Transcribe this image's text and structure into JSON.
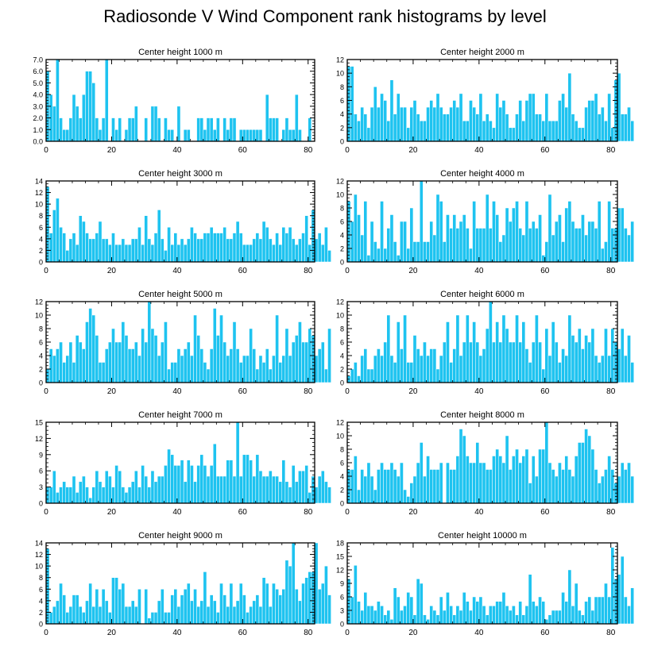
{
  "figure_title": "Radiosonde V Wind Component rank histograms by level",
  "colors": {
    "bar": "#1EC3F0",
    "bar_edge": "#ffffff",
    "axis": "#000000"
  },
  "chart_data": [
    {
      "type": "bar",
      "title": "Center height 1000 m",
      "xlim": [
        0,
        82
      ],
      "ylim": [
        0,
        7
      ],
      "xticks": [
        0,
        20,
        40,
        60,
        80
      ],
      "yticks": [
        0,
        1,
        2,
        3,
        4,
        5,
        6,
        7
      ],
      "ytick_labels": [
        "0.0",
        "1.0",
        "2.0",
        "3.0",
        "4.0",
        "5.0",
        "6.0",
        "7.0"
      ],
      "values": [
        6,
        4,
        3,
        7,
        2,
        1,
        1,
        2,
        4,
        3,
        2,
        4,
        6,
        6,
        5,
        2,
        1,
        2,
        7,
        0,
        2,
        1,
        2,
        0,
        1,
        2,
        2,
        3,
        0,
        0,
        2,
        0,
        3,
        3,
        2,
        0,
        2,
        1,
        1,
        0,
        3,
        0,
        1,
        1,
        0,
        0,
        2,
        2,
        1,
        2,
        2,
        1,
        2,
        0,
        2,
        1,
        2,
        2,
        0,
        1,
        1,
        1,
        1,
        1,
        1,
        1,
        0,
        4,
        2,
        2,
        2,
        0,
        1,
        2,
        1,
        1,
        4,
        1,
        0,
        0,
        2
      ]
    },
    {
      "type": "bar",
      "title": "Center height 2000 m",
      "xlim": [
        0,
        82
      ],
      "ylim": [
        0,
        12
      ],
      "xticks": [
        0,
        20,
        40,
        60,
        80
      ],
      "yticks": [
        0,
        2,
        4,
        6,
        8,
        10,
        12
      ],
      "ytick_labels": [
        "0",
        "2",
        "4",
        "6",
        "8",
        "10",
        "12"
      ],
      "values": [
        11,
        11,
        4,
        3,
        5,
        4,
        2,
        5,
        8,
        5,
        7,
        6,
        3,
        9,
        4,
        7,
        5,
        5,
        2,
        5,
        6,
        4,
        3,
        3,
        5,
        6,
        5,
        7,
        5,
        4,
        4,
        5,
        6,
        5,
        7,
        3,
        3,
        6,
        5,
        4,
        7,
        3,
        4,
        3,
        2,
        7,
        5,
        6,
        4,
        2,
        2,
        4,
        6,
        3,
        6,
        7,
        7,
        4,
        4,
        3,
        7,
        3,
        3,
        3,
        6,
        7,
        5,
        10,
        4,
        3,
        2,
        2,
        5,
        6,
        6,
        7,
        4,
        5,
        3,
        7,
        2,
        9,
        10,
        4,
        4,
        5,
        3
      ]
    },
    {
      "type": "bar",
      "title": "Center height 3000 m",
      "xlim": [
        0,
        82
      ],
      "ylim": [
        0,
        14
      ],
      "xticks": [
        0,
        20,
        40,
        60,
        80
      ],
      "yticks": [
        0,
        2,
        4,
        6,
        8,
        10,
        12,
        14
      ],
      "ytick_labels": [
        "0",
        "2",
        "4",
        "6",
        "8",
        "10",
        "12",
        "14"
      ],
      "values": [
        13,
        5,
        9,
        11,
        6,
        5,
        2,
        4,
        5,
        3,
        8,
        7,
        5,
        4,
        4,
        5,
        7,
        4,
        4,
        3,
        5,
        3,
        3,
        4,
        3,
        3,
        4,
        4,
        6,
        3,
        8,
        4,
        3,
        5,
        9,
        4,
        2,
        6,
        3,
        5,
        3,
        4,
        3,
        4,
        6,
        5,
        4,
        4,
        5,
        5,
        6,
        5,
        5,
        5,
        6,
        4,
        4,
        5,
        7,
        5,
        3,
        3,
        3,
        4,
        5,
        4,
        7,
        6,
        4,
        3,
        5,
        3,
        6,
        5,
        6,
        4,
        3,
        4,
        5,
        8,
        3,
        9,
        4,
        5,
        3,
        6,
        2
      ]
    },
    {
      "type": "bar",
      "title": "Center height 4000 m",
      "xlim": [
        0,
        82
      ],
      "ylim": [
        0,
        12
      ],
      "xticks": [
        0,
        20,
        40,
        60,
        80
      ],
      "yticks": [
        0,
        2,
        4,
        6,
        8,
        10,
        12
      ],
      "ytick_labels": [
        "0",
        "2",
        "4",
        "6",
        "8",
        "10",
        "12"
      ],
      "values": [
        9,
        6,
        10,
        7,
        4,
        9,
        1,
        6,
        3,
        2,
        9,
        2,
        5,
        7,
        3,
        1,
        6,
        6,
        2,
        8,
        3,
        3,
        12,
        3,
        3,
        6,
        4,
        10,
        9,
        3,
        7,
        5,
        7,
        5,
        6,
        7,
        5,
        2,
        9,
        5,
        5,
        5,
        10,
        5,
        9,
        7,
        3,
        4,
        8,
        6,
        8,
        9,
        5,
        4,
        9,
        5,
        6,
        5,
        7,
        1,
        3,
        10,
        4,
        6,
        7,
        3,
        8,
        9,
        6,
        5,
        5,
        7,
        4,
        6,
        6,
        5,
        9,
        2,
        3,
        9,
        5,
        5,
        8,
        8,
        5,
        4,
        6
      ]
    },
    {
      "type": "bar",
      "title": "Center height 5000 m",
      "xlim": [
        0,
        82
      ],
      "ylim": [
        0,
        12
      ],
      "xticks": [
        0,
        20,
        40,
        60,
        80
      ],
      "yticks": [
        0,
        2,
        4,
        6,
        8,
        10,
        12
      ],
      "ytick_labels": [
        "0",
        "2",
        "4",
        "6",
        "8",
        "10",
        "12"
      ],
      "values": [
        2,
        5,
        4,
        5,
        6,
        3,
        4,
        6,
        3,
        7,
        6,
        5,
        9,
        11,
        10,
        7,
        3,
        3,
        5,
        6,
        8,
        6,
        6,
        9,
        7,
        5,
        5,
        6,
        4,
        8,
        6,
        12,
        8,
        7,
        4,
        6,
        9,
        2,
        3,
        3,
        5,
        4,
        5,
        6,
        4,
        10,
        7,
        5,
        3,
        2,
        5,
        11,
        7,
        10,
        6,
        4,
        5,
        9,
        5,
        3,
        4,
        4,
        8,
        5,
        2,
        4,
        3,
        5,
        2,
        4,
        10,
        3,
        4,
        8,
        4,
        6,
        7,
        9,
        6,
        6,
        8,
        7,
        4,
        5,
        6,
        2,
        8
      ]
    },
    {
      "type": "bar",
      "title": "Center height 6000 m",
      "xlim": [
        0,
        82
      ],
      "ylim": [
        0,
        12
      ],
      "xticks": [
        0,
        20,
        40,
        60,
        80
      ],
      "yticks": [
        0,
        2,
        4,
        6,
        8,
        10,
        12
      ],
      "ytick_labels": [
        "0",
        "2",
        "4",
        "6",
        "8",
        "10",
        "12"
      ],
      "values": [
        1,
        2,
        3,
        1,
        4,
        5,
        2,
        2,
        4,
        5,
        4,
        6,
        10,
        4,
        3,
        9,
        5,
        10,
        3,
        3,
        7,
        5,
        4,
        6,
        4,
        5,
        5,
        2,
        4,
        6,
        9,
        3,
        5,
        10,
        4,
        6,
        10,
        6,
        9,
        6,
        4,
        5,
        8,
        12,
        6,
        9,
        6,
        10,
        8,
        6,
        6,
        10,
        6,
        9,
        5,
        3,
        6,
        10,
        6,
        2,
        8,
        4,
        9,
        6,
        3,
        5,
        4,
        10,
        7,
        6,
        8,
        5,
        7,
        6,
        8,
        4,
        3,
        4,
        8,
        4,
        8,
        6,
        5,
        8,
        4,
        7,
        3
      ]
    },
    {
      "type": "bar",
      "title": "Center height 7000 m",
      "xlim": [
        0,
        82
      ],
      "ylim": [
        0,
        15
      ],
      "xticks": [
        0,
        20,
        40,
        60,
        80
      ],
      "yticks": [
        0,
        3,
        6,
        9,
        12,
        15
      ],
      "ytick_labels": [
        "0",
        "3",
        "6",
        "9",
        "12",
        "15"
      ],
      "values": [
        3,
        3,
        6,
        2,
        3,
        4,
        3,
        3,
        5,
        2,
        4,
        5,
        3,
        1,
        3,
        6,
        4,
        3,
        6,
        5,
        3,
        7,
        6,
        3,
        2,
        3,
        4,
        6,
        3,
        7,
        5,
        3,
        6,
        4,
        5,
        5,
        7,
        10,
        9,
        7,
        7,
        8,
        4,
        8,
        7,
        4,
        7,
        9,
        7,
        5,
        7,
        11,
        5,
        5,
        5,
        8,
        8,
        5,
        15,
        5,
        9,
        9,
        8,
        5,
        9,
        6,
        5,
        5,
        6,
        5,
        5,
        4,
        8,
        4,
        3,
        7,
        4,
        6,
        6,
        7,
        2,
        5,
        3,
        5,
        6,
        4,
        3
      ]
    },
    {
      "type": "bar",
      "title": "Center height 8000 m",
      "xlim": [
        0,
        82
      ],
      "ylim": [
        0,
        12
      ],
      "xticks": [
        0,
        20,
        40,
        60,
        80
      ],
      "yticks": [
        0,
        2,
        4,
        6,
        8,
        10,
        12
      ],
      "ytick_labels": [
        "0",
        "2",
        "4",
        "6",
        "8",
        "10",
        "12"
      ],
      "values": [
        5,
        5,
        7,
        2,
        5,
        4,
        6,
        4,
        2,
        5,
        6,
        5,
        5,
        6,
        5,
        4,
        6,
        2,
        1,
        3,
        4,
        6,
        9,
        4,
        7,
        5,
        5,
        5,
        6,
        0,
        6,
        5,
        5,
        7,
        11,
        10,
        7,
        6,
        6,
        9,
        6,
        6,
        5,
        5,
        7,
        8,
        7,
        6,
        10,
        5,
        7,
        8,
        6,
        7,
        8,
        3,
        7,
        4,
        8,
        8,
        12,
        6,
        5,
        4,
        6,
        5,
        7,
        5,
        4,
        7,
        9,
        9,
        11,
        10,
        8,
        5,
        3,
        4,
        5,
        7,
        5,
        3,
        4,
        6,
        5,
        6,
        4
      ]
    },
    {
      "type": "bar",
      "title": "Center height 9000 m",
      "xlim": [
        0,
        82
      ],
      "ylim": [
        0,
        14
      ],
      "xticks": [
        0,
        20,
        40,
        60,
        80
      ],
      "yticks": [
        0,
        2,
        4,
        6,
        8,
        10,
        12,
        14
      ],
      "ytick_labels": [
        "0",
        "2",
        "4",
        "6",
        "8",
        "10",
        "12",
        "14"
      ],
      "values": [
        13,
        2,
        3,
        4,
        7,
        5,
        2,
        3,
        5,
        5,
        3,
        2,
        4,
        7,
        3,
        6,
        3,
        6,
        4,
        2,
        8,
        8,
        6,
        7,
        3,
        3,
        4,
        3,
        6,
        0,
        6,
        1,
        2,
        2,
        4,
        6,
        2,
        2,
        5,
        6,
        3,
        5,
        6,
        7,
        4,
        6,
        3,
        4,
        9,
        3,
        5,
        4,
        2,
        7,
        5,
        3,
        7,
        3,
        4,
        7,
        5,
        2,
        3,
        4,
        5,
        3,
        8,
        7,
        3,
        7,
        6,
        5,
        6,
        11,
        10,
        14,
        6,
        4,
        7,
        8,
        9,
        9,
        14,
        6,
        7,
        10,
        5
      ]
    },
    {
      "type": "bar",
      "title": "Center height 10000 m",
      "xlim": [
        0,
        82
      ],
      "ylim": [
        0,
        18
      ],
      "xticks": [
        0,
        20,
        40,
        60,
        80
      ],
      "yticks": [
        0,
        3,
        6,
        9,
        12,
        15,
        18
      ],
      "ytick_labels": [
        "0",
        "3",
        "6",
        "9",
        "12",
        "15",
        "18"
      ],
      "values": [
        10,
        6,
        13,
        5,
        3,
        7,
        4,
        4,
        3,
        5,
        4,
        2,
        3,
        1,
        8,
        6,
        3,
        4,
        7,
        6,
        2,
        10,
        9,
        2,
        1,
        4,
        3,
        2,
        6,
        3,
        7,
        4,
        2,
        4,
        3,
        7,
        5,
        3,
        6,
        5,
        6,
        4,
        2,
        4,
        4,
        5,
        5,
        7,
        4,
        3,
        4,
        2,
        5,
        2,
        4,
        11,
        5,
        4,
        6,
        5,
        1,
        2,
        3,
        3,
        3,
        7,
        5,
        12,
        4,
        9,
        3,
        2,
        5,
        6,
        3,
        6,
        6,
        6,
        9,
        6,
        17,
        10,
        11,
        15,
        6,
        4,
        8
      ]
    }
  ]
}
